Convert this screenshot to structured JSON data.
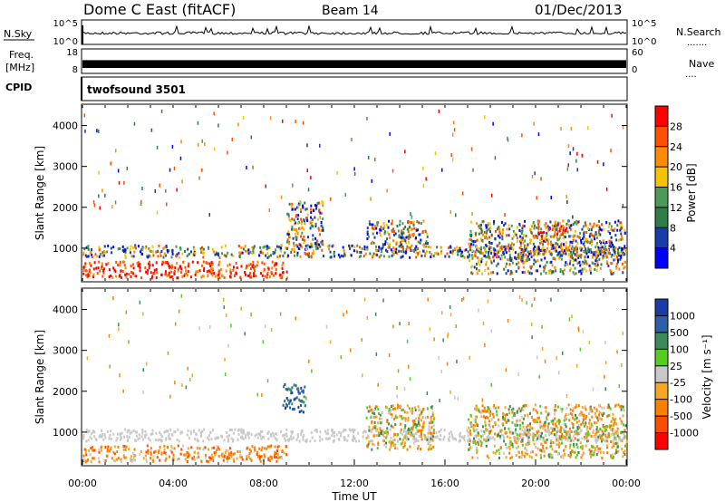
{
  "header": {
    "title": "Dome C East (fitACF)",
    "beam": "Beam 14",
    "date": "01/Dec/2013"
  },
  "nsky_panel": {
    "left_label": "N.Sky",
    "left_ticks": [
      "10^5",
      "10^0"
    ],
    "right_ticks": [
      "10^5",
      "10^0"
    ],
    "right_label": "N.Search",
    "right_label_marker": "......."
  },
  "freq_panel": {
    "left_label_1": "Freq.",
    "left_label_2": "[MHz]",
    "left_ticks": [
      "18",
      "8"
    ],
    "right_ticks": [
      "60",
      "0"
    ],
    "right_label": "Nave",
    "right_label_marker": "...."
  },
  "cpid_panel": {
    "label": "CPID",
    "program": "twofsound 3501"
  },
  "colors": {
    "power": [
      "#0000ff",
      "#1a3ca6",
      "#2e7d46",
      "#4c9a58",
      "#f5c400",
      "#ff8c00",
      "#ff5000",
      "#ff0000"
    ],
    "velocity": [
      "#ff0000",
      "#ff4d00",
      "#ff7f00",
      "#f5a623",
      "#c8c8c8",
      "#55cc22",
      "#3a8a5a",
      "#2b5fa8",
      "#1a3ca6"
    ]
  },
  "chart_data": [
    {
      "type": "heatmap",
      "name": "power_panel",
      "ylabel": "Slant Range [km]",
      "y_ticks": [
        "1000",
        "2000",
        "3000",
        "4000"
      ],
      "ylim": [
        200,
        4500
      ],
      "xlim": [
        "00:00",
        "24:00"
      ],
      "colorbar": {
        "label": "Power [dB]",
        "ticks": [
          "4",
          "8",
          "12",
          "16",
          "20",
          "24",
          "28"
        ],
        "range": [
          0,
          32
        ]
      },
      "features": [
        {
          "start_hr": 0.0,
          "end_hr": 9.0,
          "range_km_min": 300,
          "range_km_max": 700,
          "level": "high"
        },
        {
          "start_hr": 0.0,
          "end_hr": 24.0,
          "range_km_min": 800,
          "range_km_max": 1100,
          "level": "mid"
        },
        {
          "start_hr": 9.0,
          "end_hr": 10.6,
          "range_km_min": 1000,
          "range_km_max": 2200,
          "level": "mid"
        },
        {
          "start_hr": 12.5,
          "end_hr": 15.2,
          "range_km_min": 900,
          "range_km_max": 1700,
          "level": "mid"
        },
        {
          "start_hr": 17.0,
          "end_hr": 24.0,
          "range_km_min": 400,
          "range_km_max": 1700,
          "level": "mid"
        },
        {
          "start_hr": 20.0,
          "end_hr": 21.4,
          "range_km_min": 1300,
          "range_km_max": 1600,
          "level": "high"
        }
      ]
    },
    {
      "type": "heatmap",
      "name": "velocity_panel",
      "ylabel": "Slant Range [km]",
      "y_ticks": [
        "1000",
        "2000",
        "3000",
        "4000"
      ],
      "ylim": [
        200,
        4500
      ],
      "x_ticks": [
        "00:00",
        "04:00",
        "08:00",
        "12:00",
        "16:00",
        "20:00",
        "00:00"
      ],
      "xlim": [
        "00:00",
        "24:00"
      ],
      "xlabel": "Time UT",
      "colorbar": {
        "label": "Velocity [m s⁻¹]",
        "ticks": [
          "1000",
          "500",
          "100",
          "25",
          "-25",
          "-100",
          "-500",
          "-1000"
        ]
      },
      "features": [
        {
          "start_hr": 0.0,
          "end_hr": 9.0,
          "range_km_min": 300,
          "range_km_max": 700,
          "level": "away"
        },
        {
          "start_hr": 0.0,
          "end_hr": 24.0,
          "range_km_min": 800,
          "range_km_max": 1100,
          "level": "ground"
        },
        {
          "start_hr": 8.8,
          "end_hr": 9.8,
          "range_km_min": 1500,
          "range_km_max": 2200,
          "level": "toward"
        },
        {
          "start_hr": 12.5,
          "end_hr": 15.5,
          "range_km_min": 600,
          "range_km_max": 1700,
          "level": "mixed"
        },
        {
          "start_hr": 17.0,
          "end_hr": 24.0,
          "range_km_min": 400,
          "range_km_max": 1700,
          "level": "mixed"
        }
      ]
    }
  ]
}
